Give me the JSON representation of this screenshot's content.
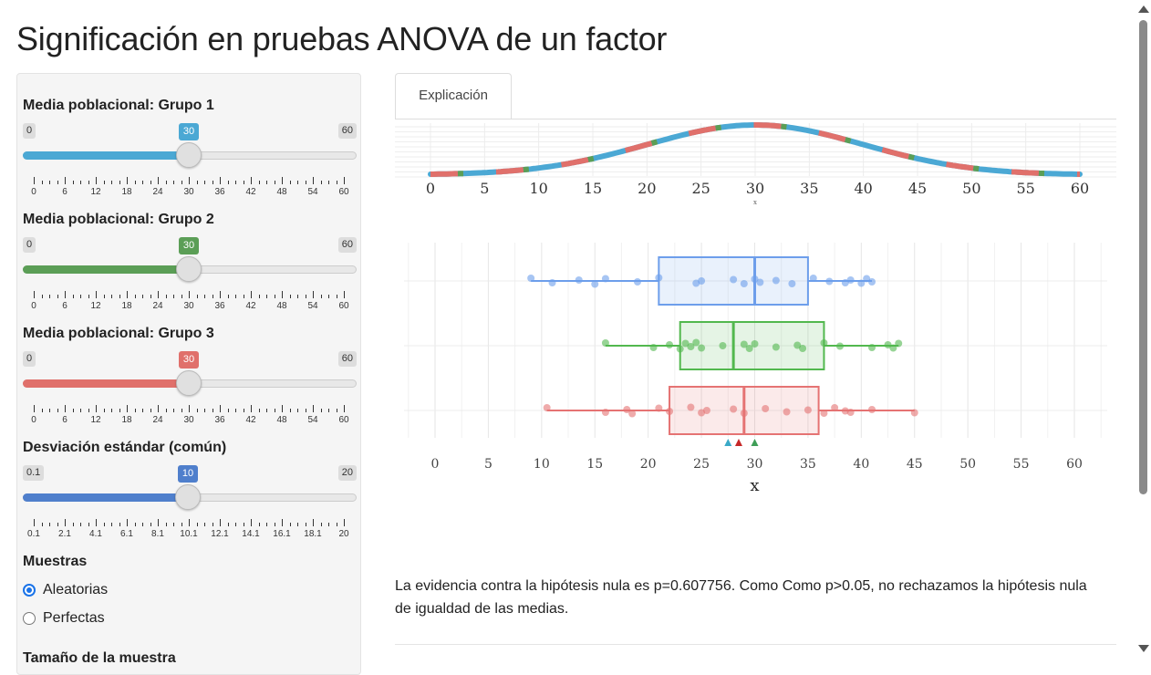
{
  "title": "Significación en pruebas ANOVA de un factor",
  "sliders": [
    {
      "label": "Media poblacional: Grupo 1",
      "min": "0",
      "max": "60",
      "value": "30",
      "fraction": 0.5,
      "color": "#4ba8d4",
      "grid": [
        "0",
        "6",
        "12",
        "18",
        "24",
        "30",
        "36",
        "42",
        "48",
        "54",
        "60"
      ]
    },
    {
      "label": "Media poblacional: Grupo 2",
      "min": "0",
      "max": "60",
      "value": "30",
      "fraction": 0.5,
      "color": "#5b9e56",
      "grid": [
        "0",
        "6",
        "12",
        "18",
        "24",
        "30",
        "36",
        "42",
        "48",
        "54",
        "60"
      ]
    },
    {
      "label": "Media poblacional: Grupo 3",
      "min": "0",
      "max": "60",
      "value": "30",
      "fraction": 0.5,
      "color": "#e0706b",
      "grid": [
        "0",
        "6",
        "12",
        "18",
        "24",
        "30",
        "36",
        "42",
        "48",
        "54",
        "60"
      ]
    },
    {
      "label": "Desviación estándar (común)",
      "min": "0.1",
      "max": "20",
      "value": "10",
      "fraction": 0.497,
      "color": "#4f7fcc",
      "grid": [
        "0.1",
        "2.1",
        "4.1",
        "6.1",
        "8.1",
        "10.1",
        "12.1",
        "14.1",
        "16.1",
        "18.1",
        "20"
      ]
    }
  ],
  "muestras": {
    "title": "Muestras",
    "options": [
      {
        "label": "Aleatorias",
        "selected": true
      },
      {
        "label": "Perfectas",
        "selected": false
      }
    ]
  },
  "tamano_label": "Tamaño de la muestra",
  "tab": {
    "label": "Explicación"
  },
  "result_text": "La evidencia contra la hipótesis nula es p=0.607756. Como Como p>0.05, no rechazamos la hipótesis nula de igualdad de las medias.",
  "chart_data": [
    {
      "type": "line",
      "title": "",
      "description_kind": "density",
      "x": [
        0,
        5,
        10,
        15,
        20,
        25,
        30,
        35,
        40,
        45,
        50,
        55,
        60
      ],
      "xlim": [
        0,
        60
      ],
      "xlabel": "x",
      "mean": 30,
      "sd": 10,
      "series_colors": [
        "#e0706b",
        "#4ba8d4",
        "#5b9e56"
      ]
    },
    {
      "type": "box",
      "xlabel": "x",
      "xlim": [
        0,
        60
      ],
      "x_ticks": [
        0,
        5,
        10,
        15,
        20,
        25,
        30,
        35,
        40,
        45,
        50,
        55,
        60
      ],
      "groups": [
        {
          "name": "Grupo 1",
          "color": "#6d9eeb",
          "min": 9,
          "q1": 21,
          "median": 30,
          "q3": 35,
          "max": 41,
          "points": [
            9,
            11,
            13.5,
            15,
            16,
            19,
            21,
            24.5,
            25,
            28,
            29,
            30,
            30.5,
            32,
            33.5,
            35.5,
            37,
            38.5,
            39,
            40,
            40.5,
            41
          ]
        },
        {
          "name": "Grupo 2",
          "color": "#52b84e",
          "min": 16,
          "q1": 23,
          "median": 28,
          "q3": 36.5,
          "max": 43.5,
          "points": [
            16,
            20.5,
            22,
            23,
            23.5,
            24,
            24.5,
            25,
            27,
            29,
            29.5,
            30,
            32,
            34,
            34.5,
            36.5,
            38,
            41,
            42.5,
            43,
            43.5
          ]
        },
        {
          "name": "Grupo 3",
          "color": "#e57373",
          "min": 10.5,
          "q1": 22,
          "median": 29,
          "q3": 36,
          "max": 45,
          "points": [
            10.5,
            16,
            18,
            18.5,
            21,
            22,
            24,
            25,
            25.5,
            28,
            29,
            31,
            33,
            35,
            36.5,
            37.5,
            38.5,
            39,
            41,
            45
          ]
        }
      ],
      "mean_markers": [
        {
          "x": 27.5,
          "color": "#3aa9c7"
        },
        {
          "x": 28.5,
          "color": "#c62828"
        },
        {
          "x": 30,
          "color": "#3f9e57"
        }
      ]
    }
  ]
}
